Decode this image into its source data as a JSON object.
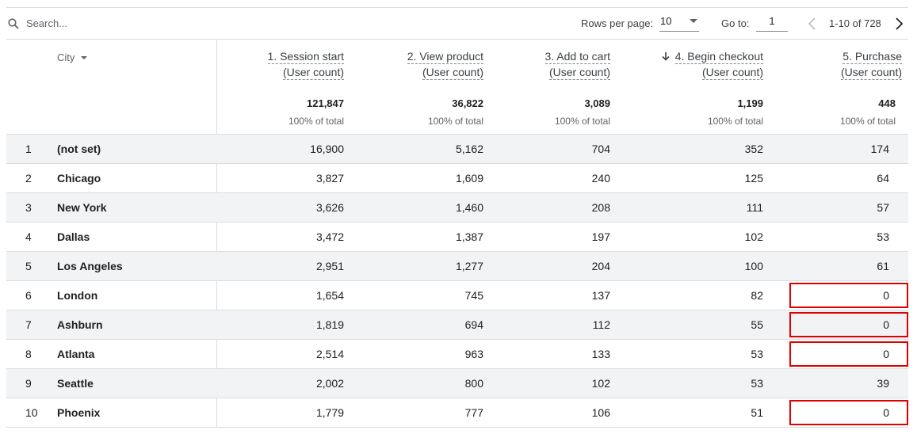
{
  "toolbar": {
    "search_placeholder": "Search...",
    "rows_per_page_label": "Rows per page:",
    "rows_per_page_value": "10",
    "goto_label": "Go to:",
    "goto_value": "1",
    "range_text": "1-10 of 728"
  },
  "table": {
    "dimension_header": "City",
    "columns": [
      {
        "line1": "1. Session start",
        "line2": "(User count)",
        "total": "121,847",
        "pct": "100% of total",
        "sorted": false
      },
      {
        "line1": "2. View product",
        "line2": "(User count)",
        "total": "36,822",
        "pct": "100% of total",
        "sorted": false
      },
      {
        "line1": "3. Add to cart",
        "line2": "(User count)",
        "total": "3,089",
        "pct": "100% of total",
        "sorted": false
      },
      {
        "line1": "4. Begin checkout",
        "line2": "(User count)",
        "total": "1,199",
        "pct": "100% of total",
        "sorted": true
      },
      {
        "line1": "5. Purchase",
        "line2": "(User count)",
        "total": "448",
        "pct": "100% of total",
        "sorted": false
      }
    ],
    "rows": [
      {
        "idx": "1",
        "city": "(not set)",
        "values": [
          "16,900",
          "5,162",
          "704",
          "352",
          "174"
        ],
        "highlight": false
      },
      {
        "idx": "2",
        "city": "Chicago",
        "values": [
          "3,827",
          "1,609",
          "240",
          "125",
          "64"
        ],
        "highlight": false
      },
      {
        "idx": "3",
        "city": "New York",
        "values": [
          "3,626",
          "1,460",
          "208",
          "111",
          "57"
        ],
        "highlight": false
      },
      {
        "idx": "4",
        "city": "Dallas",
        "values": [
          "3,472",
          "1,387",
          "197",
          "102",
          "53"
        ],
        "highlight": false
      },
      {
        "idx": "5",
        "city": "Los Angeles",
        "values": [
          "2,951",
          "1,277",
          "204",
          "100",
          "61"
        ],
        "highlight": false
      },
      {
        "idx": "6",
        "city": "London",
        "values": [
          "1,654",
          "745",
          "137",
          "82",
          "0"
        ],
        "highlight": true
      },
      {
        "idx": "7",
        "city": "Ashburn",
        "values": [
          "1,819",
          "694",
          "112",
          "55",
          "0"
        ],
        "highlight": true
      },
      {
        "idx": "8",
        "city": "Atlanta",
        "values": [
          "2,514",
          "963",
          "133",
          "53",
          "0"
        ],
        "highlight": true
      },
      {
        "idx": "9",
        "city": "Seattle",
        "values": [
          "2,002",
          "800",
          "102",
          "53",
          "39"
        ],
        "highlight": false
      },
      {
        "idx": "10",
        "city": "Phoenix",
        "values": [
          "1,779",
          "777",
          "106",
          "51",
          "0"
        ],
        "highlight": true
      }
    ]
  },
  "colors": {
    "highlight_border": "#e00000",
    "row_stripe": "#f1f3f4",
    "divider": "#dadce0"
  },
  "icons": {
    "search": "search-icon",
    "dropdown": "chevron-down-icon",
    "prev": "chevron-left-icon",
    "next": "chevron-right-icon",
    "sort": "arrow-down-icon"
  }
}
